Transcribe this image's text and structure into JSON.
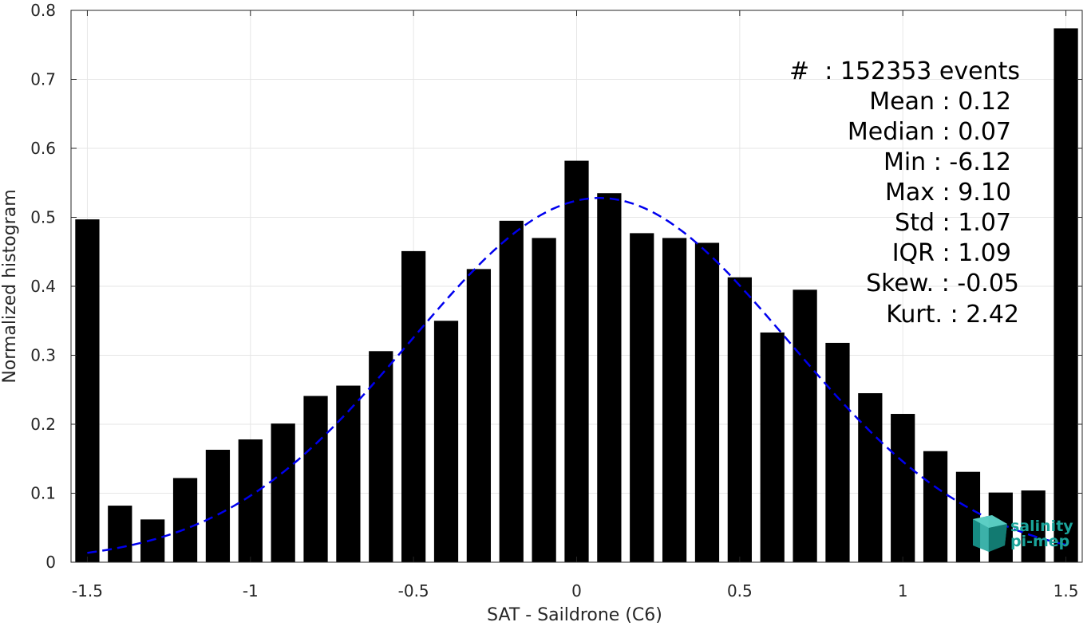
{
  "chart_data": {
    "type": "bar",
    "title": "",
    "xlabel": "SAT - Saildrone (C6)",
    "ylabel": "Normalized histogram",
    "xlim": [
      -1.55,
      1.55
    ],
    "ylim": [
      0,
      0.8
    ],
    "xticks": [
      -1.5,
      -1,
      -0.5,
      0,
      0.5,
      1,
      1.5
    ],
    "xtick_labels": [
      "-1.5",
      "-1",
      "-0.5",
      "0",
      "0.5",
      "1",
      "1.5"
    ],
    "yticks": [
      0,
      0.1,
      0.2,
      0.3,
      0.4,
      0.5,
      0.6,
      0.7,
      0.8
    ],
    "ytick_labels": [
      "0",
      "0.1",
      "0.2",
      "0.3",
      "0.4",
      "0.5",
      "0.6",
      "0.7",
      "0.8"
    ],
    "grid": true,
    "bar_color": "#000000",
    "bins": [
      -1.5,
      -1.4,
      -1.3,
      -1.2,
      -1.1,
      -1.0,
      -0.9,
      -0.8,
      -0.7,
      -0.6,
      -0.5,
      -0.4,
      -0.3,
      -0.2,
      -0.1,
      0.0,
      0.1,
      0.2,
      0.3,
      0.4,
      0.5,
      0.6,
      0.7,
      0.8,
      0.9,
      1.0,
      1.1,
      1.2,
      1.3,
      1.4,
      1.5
    ],
    "values": [
      0.497,
      0.082,
      0.062,
      0.122,
      0.163,
      0.178,
      0.201,
      0.241,
      0.256,
      0.306,
      0.451,
      0.35,
      0.425,
      0.495,
      0.47,
      0.582,
      0.535,
      0.477,
      0.47,
      0.463,
      0.413,
      0.333,
      0.395,
      0.318,
      0.245,
      0.215,
      0.161,
      0.131,
      0.101,
      0.104,
      0.774
    ],
    "fit_curve": {
      "style": "dashed",
      "color": "#0000ee",
      "mean": 0.07,
      "peak": 0.528,
      "sigma": 0.58,
      "x_range": [
        -1.5,
        1.5
      ]
    },
    "stats_text": [
      "#  : 152353 events",
      "Mean : 0.12",
      "Median : 0.07",
      "Min : -6.12",
      "Max : 9.10",
      "Std : 1.07",
      "IQR : 1.09",
      "Skew. : -0.05",
      "Kurt. : 2.42"
    ]
  },
  "logo": {
    "line1": "salinity",
    "line2": "pi-mep",
    "color": "#1aa39a"
  }
}
